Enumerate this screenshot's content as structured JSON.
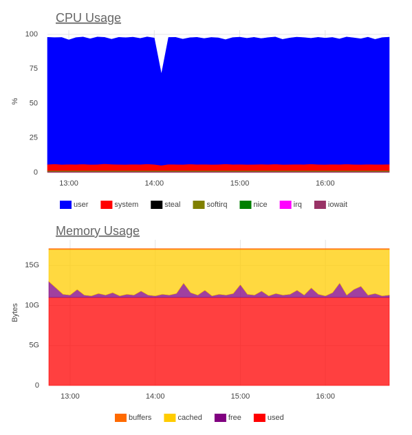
{
  "chart_data": [
    {
      "type": "stacked_area",
      "title": "CPU Usage",
      "y_label": "%",
      "x": [
        "12:45",
        "12:50",
        "12:55",
        "13:00",
        "13:05",
        "13:10",
        "13:15",
        "13:20",
        "13:25",
        "13:30",
        "13:35",
        "13:40",
        "13:45",
        "13:50",
        "13:55",
        "14:00",
        "14:05",
        "14:10",
        "14:15",
        "14:20",
        "14:25",
        "14:30",
        "14:35",
        "14:40",
        "14:45",
        "14:50",
        "14:55",
        "15:00",
        "15:05",
        "15:10",
        "15:15",
        "15:20",
        "15:25",
        "15:30",
        "15:35",
        "15:40",
        "15:45",
        "15:50",
        "15:55",
        "16:00",
        "16:05",
        "16:10",
        "16:15",
        "16:20",
        "16:25",
        "16:30",
        "16:35",
        "16:40",
        "16:45"
      ],
      "xlim": [
        "12:45",
        "16:45"
      ],
      "xticks": [
        "13:00",
        "14:00",
        "15:00",
        "16:00"
      ],
      "ylim": [
        0,
        103
      ],
      "yticks": [
        0,
        25,
        50,
        75,
        100
      ],
      "grid": true,
      "series": [
        {
          "name": "user",
          "color": "#0000ff",
          "values": [
            92,
            91.5,
            92,
            90,
            91.8,
            92,
            91,
            92.2,
            91.6,
            90.5,
            92,
            91.8,
            92,
            91.2,
            92,
            91.5,
            66,
            91.8,
            92,
            90.8,
            91.5,
            92,
            91,
            92,
            91.6,
            90,
            91.8,
            92,
            91.4,
            92,
            91,
            91.8,
            92,
            90.6,
            91.5,
            92,
            91.8,
            91,
            92,
            91.5,
            91.8,
            90.8,
            92,
            91.6,
            91,
            92,
            90.5,
            91.8,
            92
          ]
        },
        {
          "name": "system",
          "color": "#ff0000",
          "values": [
            4.5,
            4.8,
            4.4,
            4.6,
            4.5,
            4.7,
            4.4,
            4.5,
            4.9,
            4.6,
            4.5,
            4.4,
            4.6,
            4.5,
            4.8,
            4.5,
            3.8,
            4.6,
            4.5,
            4.4,
            4.7,
            4.5,
            4.6,
            4.4,
            4.5,
            4.8,
            4.5,
            4.6,
            4.4,
            4.5,
            4.6,
            4.5,
            4.7,
            4.4,
            4.5,
            4.6,
            4.5,
            4.8,
            4.5,
            4.4,
            4.6,
            4.5,
            4.7,
            4.5,
            4.4,
            4.6,
            4.5,
            4.5,
            4.6
          ]
        },
        {
          "name": "steal",
          "color": "#000000",
          "values": [
            0,
            0,
            0,
            0,
            0,
            0,
            0,
            0,
            0,
            0,
            0,
            0,
            0,
            0,
            0,
            0,
            0,
            0,
            0,
            0,
            0,
            0,
            0,
            0,
            0,
            0,
            0,
            0,
            0,
            0,
            0,
            0,
            0,
            0,
            0,
            0,
            0,
            0,
            0,
            0,
            0,
            0,
            0,
            0,
            0,
            0,
            0,
            0,
            0
          ]
        },
        {
          "name": "softirq",
          "color": "#808000",
          "values": [
            0.6,
            0.6,
            0.6,
            0.6,
            0.6,
            0.6,
            0.6,
            0.6,
            0.6,
            0.6,
            0.6,
            0.6,
            0.6,
            0.6,
            0.6,
            0.6,
            0.6,
            0.6,
            0.6,
            0.6,
            0.6,
            0.6,
            0.6,
            0.6,
            0.6,
            0.6,
            0.6,
            0.6,
            0.6,
            0.6,
            0.6,
            0.6,
            0.6,
            0.6,
            0.6,
            0.6,
            0.6,
            0.6,
            0.6,
            0.6,
            0.6,
            0.6,
            0.6,
            0.6,
            0.6,
            0.6,
            0.6,
            0.6,
            0.6
          ]
        },
        {
          "name": "nice",
          "color": "#008000",
          "values": [
            0,
            0,
            0,
            0,
            0,
            0,
            0,
            0,
            0,
            0,
            0,
            0,
            0,
            0,
            0,
            0,
            0,
            0,
            0,
            0,
            0,
            0,
            0,
            0,
            0,
            0,
            0,
            0,
            0,
            0,
            0,
            0,
            0,
            0,
            0,
            0,
            0,
            0,
            0,
            0,
            0,
            0,
            0,
            0,
            0,
            0,
            0,
            0,
            0
          ]
        },
        {
          "name": "irq",
          "color": "#ff00ff",
          "values": [
            0,
            0,
            0,
            0,
            0,
            0,
            0,
            0,
            0,
            0,
            0,
            0,
            0,
            0,
            0,
            0,
            0,
            0,
            0,
            0,
            0,
            0,
            0,
            0,
            0,
            0,
            0,
            0,
            0,
            0,
            0,
            0,
            0,
            0,
            0,
            0,
            0,
            0,
            0,
            0,
            0,
            0,
            0,
            0,
            0,
            0,
            0,
            0,
            0
          ]
        },
        {
          "name": "iowait",
          "color": "#993366",
          "values": [
            0.8,
            0.8,
            0.8,
            0.8,
            0.8,
            0.8,
            0.8,
            0.8,
            0.8,
            0.8,
            0.8,
            0.8,
            0.8,
            0.8,
            0.8,
            0.8,
            0.8,
            0.8,
            0.8,
            0.8,
            0.8,
            0.8,
            0.8,
            0.8,
            0.8,
            0.8,
            0.8,
            0.8,
            0.8,
            0.8,
            0.8,
            0.8,
            0.8,
            0.8,
            0.8,
            0.8,
            0.8,
            0.8,
            0.8,
            0.8,
            0.8,
            0.8,
            0.8,
            0.8,
            0.8,
            0.8,
            0.8,
            0.8,
            0.8
          ]
        }
      ]
    },
    {
      "type": "stacked_area",
      "title": "Memory Usage",
      "y_label": "Bytes",
      "x": [
        "12:45",
        "12:50",
        "12:55",
        "13:00",
        "13:05",
        "13:10",
        "13:15",
        "13:20",
        "13:25",
        "13:30",
        "13:35",
        "13:40",
        "13:45",
        "13:50",
        "13:55",
        "14:00",
        "14:05",
        "14:10",
        "14:15",
        "14:20",
        "14:25",
        "14:30",
        "14:35",
        "14:40",
        "14:45",
        "14:50",
        "14:55",
        "15:00",
        "15:05",
        "15:10",
        "15:15",
        "15:20",
        "15:25",
        "15:30",
        "15:35",
        "15:40",
        "15:45",
        "15:50",
        "15:55",
        "16:00",
        "16:05",
        "16:10",
        "16:15",
        "16:20",
        "16:25",
        "16:30",
        "16:35",
        "16:40",
        "16:45"
      ],
      "xlim": [
        "12:45",
        "16:45"
      ],
      "xticks": [
        "13:00",
        "14:00",
        "15:00",
        "16:00"
      ],
      "ylim": [
        0,
        18.2
      ],
      "yticks": [
        0,
        {
          "value": 5,
          "label": "5G"
        },
        {
          "value": 10,
          "label": "10G"
        },
        {
          "value": 15,
          "label": "15G"
        }
      ],
      "grid": true,
      "series": [
        {
          "name": "buffers",
          "color": "#ff6a00",
          "values": [
            0.1,
            0.1,
            0.1,
            0.1,
            0.1,
            0.1,
            0.1,
            0.1,
            0.1,
            0.1,
            0.1,
            0.1,
            0.1,
            0.1,
            0.1,
            0.1,
            0.1,
            0.1,
            0.1,
            0.1,
            0.1,
            0.1,
            0.1,
            0.1,
            0.1,
            0.1,
            0.1,
            0.1,
            0.1,
            0.1,
            0.1,
            0.1,
            0.1,
            0.1,
            0.1,
            0.1,
            0.1,
            0.1,
            0.1,
            0.1,
            0.1,
            0.1,
            0.1,
            0.1,
            0.1,
            0.1,
            0.1,
            0.1,
            0.1
          ]
        },
        {
          "name": "cached",
          "color": "#ffcc00",
          "values": [
            4.0,
            4.8,
            5.6,
            5.7,
            5.0,
            5.7,
            5.8,
            5.5,
            5.7,
            5.4,
            5.8,
            5.6,
            5.7,
            5.2,
            5.7,
            5.8,
            5.6,
            5.7,
            5.5,
            4.2,
            5.4,
            5.7,
            5.1,
            5.8,
            5.6,
            5.7,
            5.5,
            4.4,
            5.6,
            5.7,
            5.2,
            5.8,
            5.5,
            5.7,
            5.6,
            5.1,
            5.7,
            4.8,
            5.6,
            5.8,
            5.4,
            4.2,
            5.7,
            5.0,
            4.6,
            5.7,
            5.5,
            5.8,
            5.7
          ]
        },
        {
          "name": "free",
          "color": "#800080",
          "values": [
            2.0,
            1.2,
            0.4,
            0.3,
            1.0,
            0.3,
            0.2,
            0.5,
            0.3,
            0.6,
            0.2,
            0.4,
            0.3,
            0.8,
            0.3,
            0.2,
            0.4,
            0.3,
            0.5,
            1.8,
            0.6,
            0.3,
            0.9,
            0.2,
            0.4,
            0.3,
            0.5,
            1.6,
            0.4,
            0.3,
            0.8,
            0.2,
            0.5,
            0.3,
            0.4,
            0.9,
            0.3,
            1.2,
            0.4,
            0.2,
            0.6,
            1.8,
            0.3,
            1.0,
            1.4,
            0.3,
            0.5,
            0.2,
            0.3
          ]
        },
        {
          "name": "used",
          "color": "#ff0000",
          "values": [
            11,
            11,
            11,
            11,
            11,
            11,
            11,
            11,
            11,
            11,
            11,
            11,
            11,
            11,
            11,
            11,
            11,
            11,
            11,
            11,
            11,
            11,
            11,
            11,
            11,
            11,
            11,
            11,
            11,
            11,
            11,
            11,
            11,
            11,
            11,
            11,
            11,
            11,
            11,
            11,
            11,
            11,
            11,
            11,
            11,
            11,
            11,
            11,
            11
          ]
        }
      ]
    }
  ]
}
